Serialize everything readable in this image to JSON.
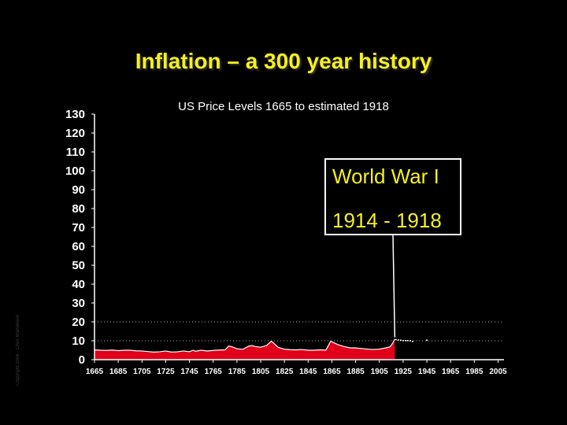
{
  "slide": {
    "title": "Inflation – a 300 year history",
    "copyright": "Copyright 2006 - Chris Martenson"
  },
  "callout": {
    "line1": "World War I",
    "line2": "1914 - 1918"
  },
  "chart_data": {
    "type": "area",
    "title": "US Price Levels 1665 to estimated 1918",
    "xlabel": "",
    "ylabel": "",
    "xlim": [
      1665,
      2010
    ],
    "ylim": [
      0,
      130
    ],
    "yticks": [
      0,
      10,
      20,
      30,
      40,
      50,
      60,
      70,
      80,
      90,
      100,
      110,
      120,
      130
    ],
    "xticks": [
      1665,
      1685,
      1705,
      1725,
      1745,
      1765,
      1785,
      1805,
      1825,
      1845,
      1865,
      1885,
      1905,
      1925,
      1945,
      1965,
      1985,
      2005
    ],
    "grid": false,
    "reference_lines": [
      10,
      20
    ],
    "colors": {
      "fill": "#e0001a",
      "outline": "#ffffff",
      "axis": "#ffffff",
      "reference": "#aaaaaa"
    },
    "series": [
      {
        "x": [
          1665,
          1670,
          1675,
          1680,
          1685,
          1690,
          1695,
          1700,
          1705,
          1710,
          1715,
          1720,
          1725,
          1730,
          1735,
          1740,
          1745,
          1748,
          1750,
          1755,
          1760,
          1765,
          1770,
          1775,
          1778,
          1780,
          1785,
          1790,
          1795,
          1798,
          1800,
          1805,
          1810,
          1814,
          1818,
          1820,
          1825,
          1830,
          1835,
          1840,
          1845,
          1850,
          1855,
          1860,
          1864,
          1866,
          1870,
          1875,
          1880,
          1885,
          1890,
          1895,
          1900,
          1905,
          1910,
          1914,
          1916,
          1918
        ],
        "values": [
          5.2,
          5.0,
          4.9,
          5.1,
          4.8,
          5.0,
          5.0,
          4.7,
          4.6,
          4.3,
          4.0,
          4.2,
          4.6,
          4.0,
          4.2,
          4.6,
          4.2,
          5.0,
          4.5,
          5.0,
          4.6,
          4.9,
          5.1,
          5.2,
          7.2,
          7.0,
          5.8,
          5.5,
          7.2,
          7.5,
          7.0,
          6.6,
          7.5,
          9.8,
          7.6,
          6.4,
          5.6,
          5.3,
          5.2,
          5.4,
          5.0,
          5.0,
          5.2,
          5.1,
          9.8,
          9.2,
          8.0,
          7.0,
          6.3,
          6.2,
          5.9,
          5.6,
          5.4,
          5.6,
          6.2,
          6.8,
          8.5,
          11.0
        ]
      }
    ],
    "post_war_markers": {
      "x": [
        1919,
        1921,
        1923,
        1925,
        1927,
        1929,
        1931,
        1933,
        1945
      ],
      "values": [
        10.5,
        10.3,
        10.2,
        10.0,
        10.0,
        10.0,
        9.9,
        9.6,
        10.2
      ]
    }
  }
}
